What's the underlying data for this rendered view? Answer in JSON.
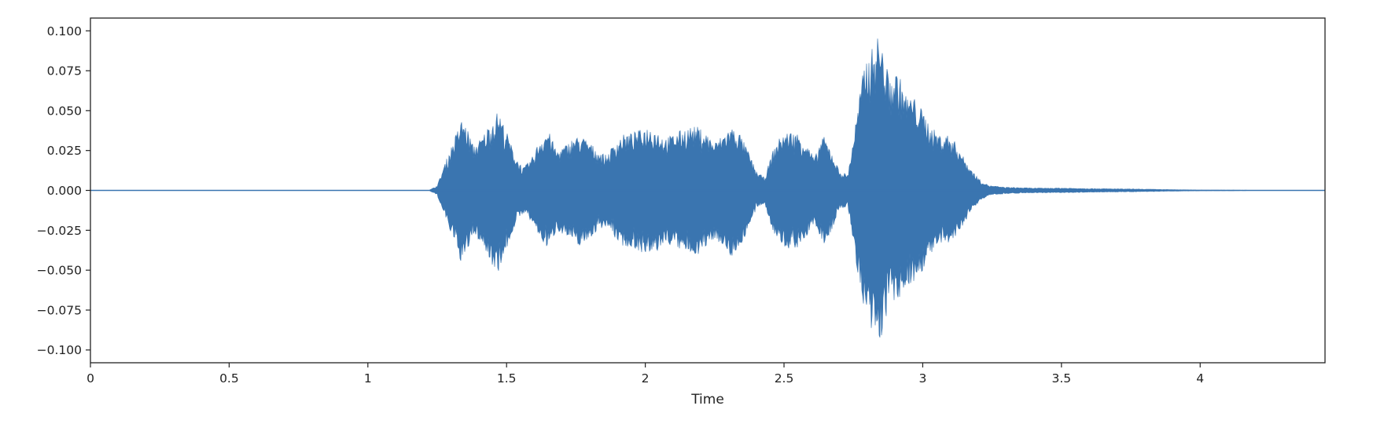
{
  "chart_data": {
    "type": "line",
    "title": "",
    "xlabel": "Time",
    "ylabel": "",
    "xlim": [
      0,
      4.45
    ],
    "ylim": [
      -0.108,
      0.108
    ],
    "x_ticks": [
      0,
      0.5,
      1,
      1.5,
      2,
      2.5,
      3,
      3.5,
      4
    ],
    "x_tick_labels": [
      "0",
      "0.5",
      "1",
      "1.5",
      "2",
      "2.5",
      "3",
      "3.5",
      "4"
    ],
    "y_ticks": [
      0.1,
      0.075,
      0.05,
      0.025,
      0.0,
      -0.025,
      -0.05,
      -0.075,
      -0.1
    ],
    "y_tick_labels": [
      "0.100",
      "0.075",
      "0.050",
      "0.025",
      "0.000",
      "−0.025",
      "−0.050",
      "−0.075",
      "−0.100"
    ],
    "grid": false,
    "legend": "none",
    "color": "#3a75b0",
    "series": [
      {
        "kind": "waveform-envelope",
        "x": [
          0,
          1.22,
          1.25,
          1.28,
          1.31,
          1.34,
          1.36,
          1.38,
          1.41,
          1.44,
          1.47,
          1.5,
          1.53,
          1.56,
          1.59,
          1.62,
          1.65,
          1.68,
          1.71,
          1.74,
          1.77,
          1.8,
          1.83,
          1.86,
          1.89,
          1.92,
          1.95,
          1.98,
          2.01,
          2.04,
          2.07,
          2.1,
          2.13,
          2.16,
          2.19,
          2.22,
          2.25,
          2.28,
          2.31,
          2.34,
          2.37,
          2.4,
          2.43,
          2.46,
          2.49,
          2.52,
          2.55,
          2.58,
          2.61,
          2.64,
          2.67,
          2.7,
          2.73,
          2.76,
          2.79,
          2.82,
          2.84,
          2.86,
          2.88,
          2.91,
          2.94,
          2.97,
          3.0,
          3.03,
          3.06,
          3.09,
          3.12,
          3.15,
          3.18,
          3.21,
          3.24,
          3.3,
          3.4,
          3.5,
          3.6,
          3.7,
          3.8,
          3.9,
          4.0,
          4.2,
          4.45
        ],
        "upper": [
          0,
          0,
          0.003,
          0.018,
          0.032,
          0.045,
          0.038,
          0.028,
          0.033,
          0.042,
          0.05,
          0.037,
          0.022,
          0.014,
          0.02,
          0.032,
          0.038,
          0.025,
          0.028,
          0.033,
          0.034,
          0.03,
          0.025,
          0.022,
          0.03,
          0.035,
          0.036,
          0.038,
          0.04,
          0.038,
          0.033,
          0.035,
          0.038,
          0.04,
          0.04,
          0.036,
          0.03,
          0.035,
          0.04,
          0.036,
          0.025,
          0.012,
          0.008,
          0.025,
          0.035,
          0.037,
          0.036,
          0.03,
          0.02,
          0.035,
          0.025,
          0.012,
          0.01,
          0.045,
          0.08,
          0.09,
          0.098,
          0.085,
          0.07,
          0.075,
          0.06,
          0.058,
          0.05,
          0.04,
          0.035,
          0.035,
          0.03,
          0.02,
          0.012,
          0.006,
          0.003,
          0.002,
          0.0015,
          0.0015,
          0.0012,
          0.001,
          0.0008,
          0.0005,
          0.0003,
          0.0001,
          0
        ],
        "lower": [
          0,
          0,
          -0.003,
          -0.018,
          -0.032,
          -0.047,
          -0.038,
          -0.028,
          -0.033,
          -0.045,
          -0.051,
          -0.037,
          -0.022,
          -0.014,
          -0.02,
          -0.03,
          -0.037,
          -0.025,
          -0.028,
          -0.033,
          -0.035,
          -0.03,
          -0.025,
          -0.022,
          -0.03,
          -0.035,
          -0.036,
          -0.038,
          -0.042,
          -0.039,
          -0.033,
          -0.035,
          -0.038,
          -0.04,
          -0.04,
          -0.036,
          -0.03,
          -0.035,
          -0.042,
          -0.036,
          -0.025,
          -0.012,
          -0.008,
          -0.026,
          -0.035,
          -0.037,
          -0.036,
          -0.03,
          -0.02,
          -0.035,
          -0.026,
          -0.012,
          -0.01,
          -0.045,
          -0.08,
          -0.093,
          -0.098,
          -0.087,
          -0.07,
          -0.072,
          -0.06,
          -0.058,
          -0.05,
          -0.04,
          -0.035,
          -0.034,
          -0.03,
          -0.02,
          -0.012,
          -0.006,
          -0.003,
          -0.002,
          -0.0015,
          -0.0015,
          -0.0012,
          -0.001,
          -0.0008,
          -0.0005,
          -0.0003,
          -0.0001,
          0
        ]
      }
    ]
  }
}
